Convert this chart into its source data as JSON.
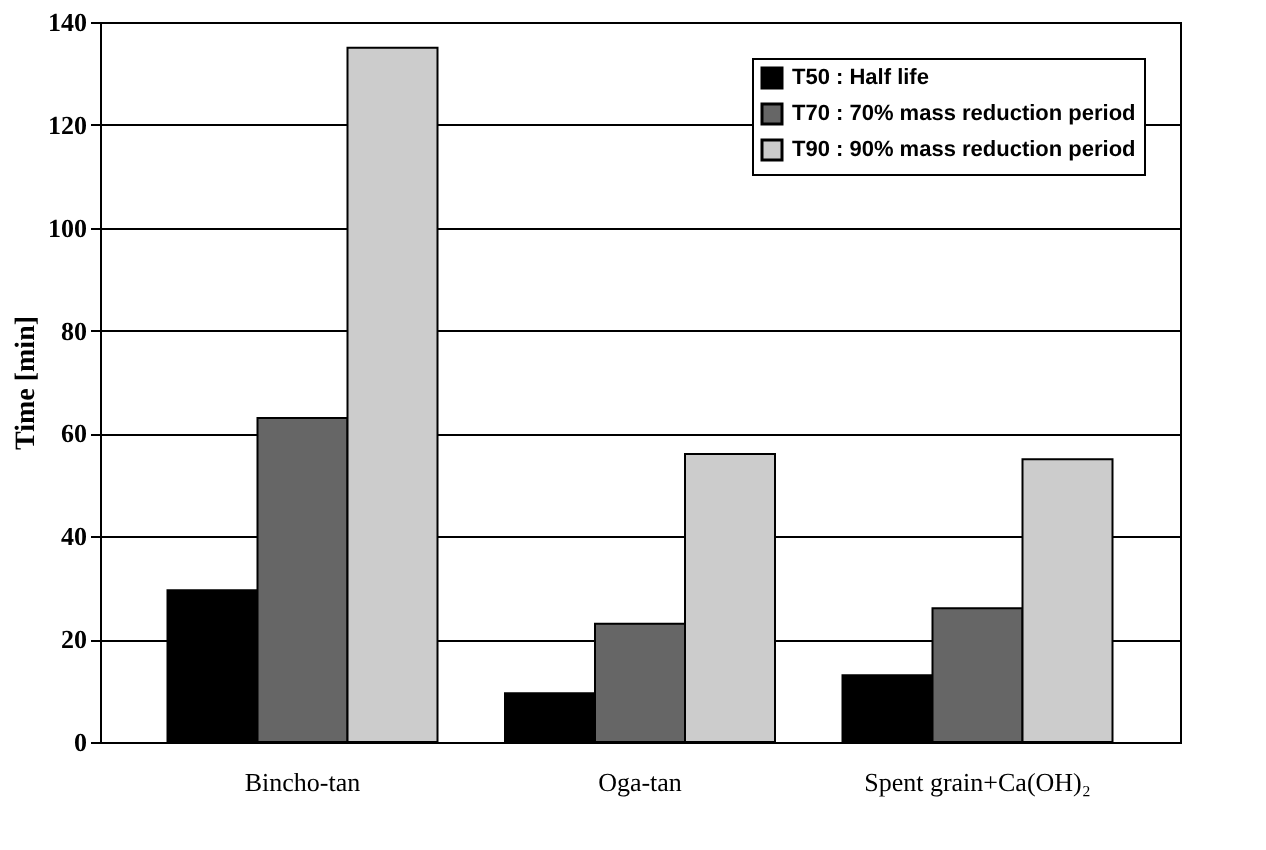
{
  "chart_data": {
    "type": "bar",
    "ylabel": "Time  [min]",
    "categories": [
      "Bincho-tan",
      "Oga-tan",
      "Spent grain+Ca(OH)₂"
    ],
    "series": [
      {
        "name": "T50 : Half life",
        "color": "#000000",
        "values": [
          29.5,
          9.5,
          13
        ]
      },
      {
        "name": "T70 : 70% mass reduction period",
        "color": "#666666",
        "values": [
          63,
          23,
          26
        ]
      },
      {
        "name": "T90 : 90% mass reduction period",
        "color": "#cccccc",
        "values": [
          135,
          56,
          55
        ]
      }
    ],
    "ylim": [
      0,
      140
    ],
    "yticks": [
      0,
      20,
      40,
      60,
      80,
      100,
      120,
      140
    ],
    "grid": "y",
    "legend": "top right"
  }
}
